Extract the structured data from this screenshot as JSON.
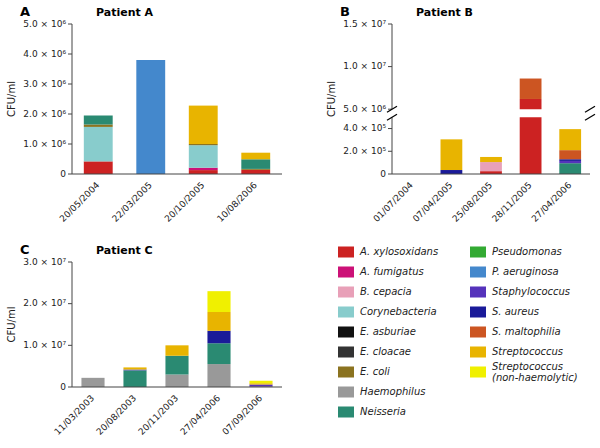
{
  "chart_data": [
    {
      "type": "bar",
      "title": "Patient A",
      "annotations": [
        "A"
      ],
      "y_label": "CFU/ml",
      "stacked": true,
      "categories": [
        "20/05/2004",
        "22/03/2005",
        "20/10/2005",
        "10/08/2006"
      ],
      "ylim": [
        0,
        5000000
      ],
      "yticks": [
        0,
        {
          "value": 1000000,
          "label": "1.0 × 10⁶"
        },
        {
          "value": 2000000,
          "label": "2.0 × 10⁶"
        },
        {
          "value": 3000000,
          "label": "3.0 × 10⁶"
        },
        {
          "value": 4000000,
          "label": "4.0 × 10⁶"
        },
        {
          "value": 5000000,
          "label": "5.0 × 10⁶"
        }
      ],
      "series": [
        {
          "name": "A. xylosoxidans",
          "color": "#cc2222",
          "values": [
            420000,
            null,
            130000,
            140000
          ]
        },
        {
          "name": "A. fumigatus",
          "color": "#cc1177",
          "values": [
            null,
            null,
            80000,
            null
          ]
        },
        {
          "name": "B. cepacia",
          "color": "#e8a0b8",
          "values": [
            null,
            null,
            null,
            null
          ]
        },
        {
          "name": "Corynebacteria",
          "color": "#88cccc",
          "values": [
            1150000,
            null,
            750000,
            null
          ]
        },
        {
          "name": "E. asburiae",
          "color": "#111111",
          "values": [
            null,
            null,
            null,
            null
          ]
        },
        {
          "name": "E. cloacae",
          "color": "#333333",
          "values": [
            null,
            null,
            null,
            null
          ]
        },
        {
          "name": "E. coli",
          "color": "#8b7320",
          "values": [
            80000,
            null,
            40000,
            30000
          ]
        },
        {
          "name": "Haemophilus",
          "color": "#999999",
          "values": [
            null,
            null,
            null,
            null
          ]
        },
        {
          "name": "Neisseria",
          "color": "#2a8a72",
          "values": [
            300000,
            null,
            null,
            320000
          ]
        },
        {
          "name": "Pseudomonas",
          "color": "#33aa33",
          "values": [
            null,
            null,
            null,
            null
          ]
        },
        {
          "name": "P. aeruginosa",
          "color": "#4488cc",
          "values": [
            null,
            3800000,
            null,
            null
          ]
        },
        {
          "name": "Staphylococcus",
          "color": "#5533bb",
          "values": [
            null,
            null,
            null,
            null
          ]
        },
        {
          "name": "S. aureus",
          "color": "#1a1a99",
          "values": [
            null,
            null,
            null,
            null
          ]
        },
        {
          "name": "S. maltophilia",
          "color": "#cc5522",
          "values": [
            null,
            null,
            null,
            null
          ]
        },
        {
          "name": "Streptococcus",
          "color": "#e8b400",
          "values": [
            null,
            null,
            1280000,
            220000
          ]
        },
        {
          "name": "Streptococcus\n(non-haemolytic)",
          "color": "#f0f000",
          "values": [
            null,
            null,
            null,
            null
          ]
        }
      ]
    },
    {
      "type": "bar",
      "title": "Patient B",
      "annotations": [
        "B"
      ],
      "y_label": "CFU/ml",
      "stacked": true,
      "categories": [
        "01/07/2004",
        "07/04/2005",
        "25/08/2005",
        "28/11/2005",
        "27/04/2006"
      ],
      "ylim": [
        0,
        15000000
      ],
      "yticks": [
        0,
        {
          "value": 200000,
          "label": "2.0 × 10⁵"
        },
        {
          "value": 400000,
          "label": "4.0 × 10⁵"
        },
        {
          "value": 5000000,
          "label": "5.0 × 10⁶"
        },
        {
          "value": 10000000,
          "label": "1.0 × 10⁷"
        },
        {
          "value": 15000000,
          "label": "1.5 × 10⁷"
        }
      ],
      "series": [
        {
          "name": "A. xylosoxidans",
          "color": "#cc2222",
          "values": [
            null,
            null,
            25000,
            6200000,
            null
          ]
        },
        {
          "name": "A. fumigatus",
          "color": "#cc1177",
          "values": [
            null,
            null,
            null,
            null,
            null
          ]
        },
        {
          "name": "B. cepacia",
          "color": "#e8a0b8",
          "values": [
            null,
            null,
            80000,
            null,
            null
          ]
        },
        {
          "name": "Corynebacteria",
          "color": "#88cccc",
          "values": [
            null,
            null,
            null,
            null,
            null
          ]
        },
        {
          "name": "E. asburiae",
          "color": "#111111",
          "values": [
            null,
            null,
            null,
            null,
            null
          ]
        },
        {
          "name": "E. cloacae",
          "color": "#333333",
          "values": [
            null,
            null,
            null,
            null,
            null
          ]
        },
        {
          "name": "E. coli",
          "color": "#8b7320",
          "values": [
            null,
            null,
            null,
            null,
            null
          ]
        },
        {
          "name": "Haemophilus",
          "color": "#999999",
          "values": [
            null,
            null,
            null,
            null,
            null
          ]
        },
        {
          "name": "Neisseria",
          "color": "#2a8a72",
          "values": [
            null,
            null,
            null,
            null,
            95000
          ]
        },
        {
          "name": "Pseudomonas",
          "color": "#33aa33",
          "values": [
            null,
            null,
            null,
            null,
            null
          ]
        },
        {
          "name": "P. aeruginosa",
          "color": "#4488cc",
          "values": [
            null,
            null,
            null,
            null,
            null
          ]
        },
        {
          "name": "Staphylococcus",
          "color": "#5533bb",
          "values": [
            null,
            null,
            null,
            null,
            20000
          ]
        },
        {
          "name": "S. aureus",
          "color": "#1a1a99",
          "values": [
            null,
            35000,
            null,
            null,
            15000
          ]
        },
        {
          "name": "S. maltophilia",
          "color": "#cc5522",
          "values": [
            null,
            null,
            null,
            2400000,
            80000
          ]
        },
        {
          "name": "Streptococcus",
          "color": "#e8b400",
          "values": [
            null,
            270000,
            45000,
            null,
            185000
          ]
        },
        {
          "name": "Streptococcus\n(non-haemolytic)",
          "color": "#f0f000",
          "values": [
            null,
            null,
            null,
            null,
            null
          ]
        }
      ]
    },
    {
      "type": "bar",
      "title": "Patient C",
      "annotations": [
        "C"
      ],
      "y_label": "CFU/ml",
      "stacked": true,
      "legend": "lower right",
      "categories": [
        "11/03/2003",
        "20/08/2003",
        "20/11/2003",
        "27/04/2006",
        "07/09/2006"
      ],
      "ylim": [
        0,
        30000000
      ],
      "yticks": [
        0,
        {
          "value": 10000000,
          "label": "1.0 × 10⁷"
        },
        {
          "value": 20000000,
          "label": "2.0 × 10⁷"
        },
        {
          "value": 30000000,
          "label": "3.0 × 10⁷"
        }
      ],
      "series": [
        {
          "name": "A. xylosoxidans",
          "color": "#cc2222",
          "values": [
            null,
            null,
            null,
            null,
            null
          ]
        },
        {
          "name": "A. fumigatus",
          "color": "#cc1177",
          "values": [
            null,
            null,
            null,
            null,
            null
          ]
        },
        {
          "name": "B. cepacia",
          "color": "#e8a0b8",
          "values": [
            null,
            null,
            null,
            null,
            null
          ]
        },
        {
          "name": "Corynebacteria",
          "color": "#88cccc",
          "values": [
            null,
            null,
            null,
            null,
            null
          ]
        },
        {
          "name": "E. asburiae",
          "color": "#111111",
          "values": [
            null,
            null,
            null,
            null,
            null
          ]
        },
        {
          "name": "E. cloacae",
          "color": "#333333",
          "values": [
            null,
            null,
            null,
            null,
            null
          ]
        },
        {
          "name": "E. coli",
          "color": "#8b7320",
          "values": [
            null,
            null,
            null,
            null,
            100000
          ]
        },
        {
          "name": "Haemophilus",
          "color": "#999999",
          "values": [
            2200000,
            null,
            3000000,
            5500000,
            null
          ]
        },
        {
          "name": "Neisseria",
          "color": "#2a8a72",
          "values": [
            null,
            4000000,
            4500000,
            5000000,
            null
          ]
        },
        {
          "name": "Pseudomonas",
          "color": "#33aa33",
          "values": [
            null,
            null,
            null,
            null,
            null
          ]
        },
        {
          "name": "P. aeruginosa",
          "color": "#4488cc",
          "values": [
            null,
            null,
            null,
            null,
            null
          ]
        },
        {
          "name": "Staphylococcus",
          "color": "#5533bb",
          "values": [
            null,
            200000,
            null,
            null,
            500000
          ]
        },
        {
          "name": "S. aureus",
          "color": "#1a1a99",
          "values": [
            null,
            null,
            null,
            3000000,
            null
          ]
        },
        {
          "name": "S. maltophilia",
          "color": "#cc5522",
          "values": [
            null,
            null,
            null,
            null,
            null
          ]
        },
        {
          "name": "Streptococcus",
          "color": "#e8b400",
          "values": [
            null,
            500000,
            2500000,
            4500000,
            300000
          ]
        },
        {
          "name": "Streptococcus\n(non-haemolytic)",
          "color": "#f0f000",
          "values": [
            null,
            null,
            null,
            5000000,
            600000
          ]
        }
      ]
    }
  ]
}
